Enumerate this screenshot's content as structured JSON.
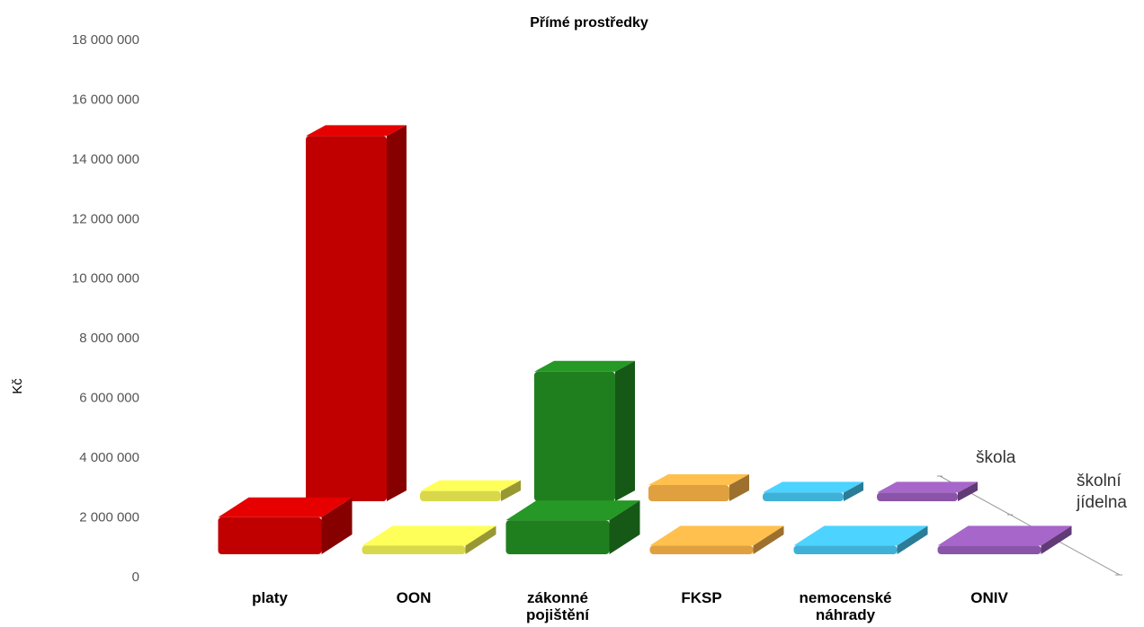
{
  "chart_data": {
    "type": "bar3d",
    "title": "Přímé prostředky",
    "y_label": "Kč",
    "categories": [
      "platy",
      "OON",
      "zákonné pojištění",
      "FKSP",
      "nemocenské náhrady",
      "ONIV"
    ],
    "colors": [
      "#c00000",
      "#d8d84a",
      "#1f7f1f",
      "#e0a040",
      "#3fb0d8",
      "#8a55a8"
    ],
    "series": [
      {
        "name": "škola",
        "values": [
          12000000,
          100000,
          4100000,
          300000,
          50000,
          50000
        ]
      },
      {
        "name": "školní jídelna",
        "values": [
          1000000,
          50000,
          900000,
          50000,
          50000,
          50000
        ]
      }
    ],
    "ylim": [
      0,
      18000000
    ],
    "yticks": [
      {
        "value": 0,
        "label": "0"
      },
      {
        "value": 2000000,
        "label": "2 000 000"
      },
      {
        "value": 4000000,
        "label": "4 000 000"
      },
      {
        "value": 6000000,
        "label": "6 000 000"
      },
      {
        "value": 8000000,
        "label": "8 000 000"
      },
      {
        "value": 10000000,
        "label": "10 000 000"
      },
      {
        "value": 12000000,
        "label": "12 000 000"
      },
      {
        "value": 14000000,
        "label": "14 000 000"
      },
      {
        "value": 16000000,
        "label": "16 000 000"
      },
      {
        "value": 18000000,
        "label": "18 000 000"
      }
    ]
  }
}
